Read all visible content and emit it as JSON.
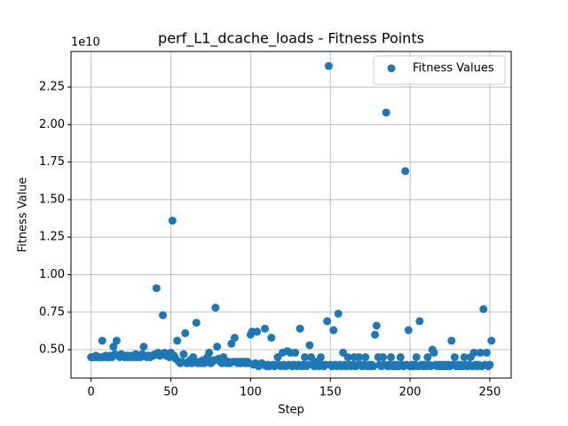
{
  "chart_data": {
    "type": "scatter",
    "title": "perf_L1_dcache_loads - Fitness Points",
    "xlabel": "Step",
    "ylabel": "Fitness Value",
    "y_offset_label": "1e10",
    "grid": true,
    "legend_position": "upper right",
    "xlim": [
      -12.6,
      263.4
    ],
    "ylim": [
      0.311,
      2.487
    ],
    "xticks": [
      0,
      50,
      100,
      150,
      200,
      250
    ],
    "yticks": [
      {
        "value": 0.5,
        "label": "0.50"
      },
      {
        "value": 0.75,
        "label": "0.75"
      },
      {
        "value": 1.0,
        "label": "1.00"
      },
      {
        "value": 1.25,
        "label": "1.25"
      },
      {
        "value": 1.5,
        "label": "1.50"
      },
      {
        "value": 1.75,
        "label": "1.75"
      },
      {
        "value": 2.0,
        "label": "2.00"
      },
      {
        "value": 2.25,
        "label": "2.25"
      }
    ],
    "series": [
      {
        "name": "Fitness Values",
        "color": "#1f77b4",
        "x": [
          0,
          1,
          2,
          3,
          4,
          5,
          6,
          7,
          8,
          9,
          10,
          11,
          12,
          13,
          14,
          15,
          16,
          17,
          18,
          19,
          20,
          21,
          22,
          23,
          24,
          25,
          26,
          27,
          28,
          29,
          30,
          31,
          32,
          33,
          34,
          35,
          36,
          37,
          38,
          39,
          40,
          41,
          42,
          43,
          44,
          45,
          46,
          47,
          48,
          49,
          50,
          51,
          52,
          53,
          54,
          55,
          56,
          57,
          58,
          59,
          60,
          61,
          62,
          63,
          64,
          65,
          66,
          67,
          68,
          69,
          70,
          71,
          72,
          73,
          74,
          75,
          76,
          77,
          78,
          79,
          80,
          81,
          82,
          83,
          84,
          85,
          86,
          87,
          88,
          89,
          90,
          91,
          92,
          93,
          94,
          95,
          96,
          97,
          98,
          99,
          100,
          101,
          102,
          103,
          104,
          105,
          106,
          107,
          108,
          109,
          110,
          111,
          112,
          113,
          114,
          115,
          116,
          117,
          118,
          119,
          120,
          121,
          122,
          123,
          124,
          125,
          126,
          127,
          128,
          129,
          130,
          131,
          132,
          133,
          134,
          135,
          136,
          137,
          138,
          139,
          140,
          141,
          142,
          143,
          144,
          145,
          146,
          147,
          148,
          149,
          150,
          151,
          152,
          153,
          154,
          155,
          156,
          157,
          158,
          159,
          160,
          161,
          162,
          163,
          164,
          165,
          166,
          167,
          168,
          169,
          170,
          171,
          172,
          173,
          174,
          175,
          176,
          177,
          178,
          179,
          180,
          181,
          182,
          183,
          184,
          185,
          186,
          187,
          188,
          189,
          190,
          191,
          192,
          193,
          194,
          195,
          196,
          197,
          198,
          199,
          200,
          201,
          202,
          203,
          204,
          205,
          206,
          207,
          208,
          209,
          210,
          211,
          212,
          213,
          214,
          215,
          216,
          217,
          218,
          219,
          220,
          221,
          222,
          223,
          224,
          225,
          226,
          227,
          228,
          229,
          230,
          231,
          232,
          233,
          234,
          235,
          236,
          237,
          238,
          239,
          240,
          241,
          242,
          243,
          244,
          245,
          246,
          247,
          248,
          249,
          250,
          251
        ],
        "values": [
          0.45,
          0.45,
          0.45,
          0.46,
          0.45,
          0.45,
          0.45,
          0.56,
          0.45,
          0.46,
          0.45,
          0.45,
          0.46,
          0.45,
          0.52,
          0.47,
          0.56,
          0.46,
          0.45,
          0.47,
          0.46,
          0.45,
          0.46,
          0.45,
          0.46,
          0.45,
          0.46,
          0.45,
          0.47,
          0.45,
          0.46,
          0.45,
          0.47,
          0.52,
          0.46,
          0.45,
          0.46,
          0.45,
          0.46,
          0.46,
          0.47,
          0.91,
          0.48,
          0.46,
          0.47,
          0.73,
          0.48,
          0.46,
          0.47,
          0.45,
          0.48,
          1.36,
          0.46,
          0.44,
          0.56,
          0.42,
          0.41,
          0.42,
          0.47,
          0.61,
          0.41,
          0.42,
          0.43,
          0.41,
          0.45,
          0.42,
          0.68,
          0.41,
          0.42,
          0.41,
          0.43,
          0.41,
          0.42,
          0.45,
          0.48,
          0.41,
          0.42,
          0.43,
          0.78,
          0.52,
          0.44,
          0.42,
          0.41,
          0.45,
          0.42,
          0.41,
          0.42,
          0.41,
          0.54,
          0.42,
          0.58,
          0.42,
          0.41,
          0.42,
          0.41,
          0.42,
          0.42,
          0.41,
          0.42,
          0.41,
          0.6,
          0.62,
          0.4,
          0.41,
          0.62,
          0.39,
          0.4,
          0.41,
          0.4,
          0.64,
          0.39,
          0.4,
          0.39,
          0.58,
          0.4,
          0.39,
          0.4,
          0.45,
          0.4,
          0.39,
          0.48,
          0.4,
          0.39,
          0.49,
          0.4,
          0.48,
          0.39,
          0.4,
          0.48,
          0.39,
          0.4,
          0.64,
          0.39,
          0.4,
          0.45,
          0.39,
          0.4,
          0.53,
          0.45,
          0.4,
          0.39,
          0.42,
          0.4,
          0.39,
          0.45,
          0.4,
          0.39,
          0.4,
          0.69,
          2.39,
          0.4,
          0.39,
          0.63,
          0.4,
          0.39,
          0.74,
          0.4,
          0.39,
          0.48,
          0.4,
          0.39,
          0.45,
          0.4,
          0.39,
          0.4,
          0.45,
          0.39,
          0.4,
          0.45,
          0.4,
          0.39,
          0.4,
          0.45,
          0.39,
          0.4,
          0.39,
          0.4,
          0.39,
          0.6,
          0.66,
          0.45,
          0.4,
          0.39,
          0.45,
          0.4,
          2.08,
          0.39,
          0.4,
          0.45,
          0.39,
          0.4,
          0.39,
          0.4,
          0.39,
          0.45,
          0.4,
          0.39,
          1.69,
          0.4,
          0.63,
          0.39,
          0.4,
          0.39,
          0.4,
          0.45,
          0.39,
          0.69,
          0.4,
          0.39,
          0.4,
          0.39,
          0.45,
          0.4,
          0.39,
          0.5,
          0.48,
          0.4,
          0.39,
          0.4,
          0.39,
          0.4,
          0.39,
          0.4,
          0.39,
          0.4,
          0.39,
          0.56,
          0.4,
          0.45,
          0.39,
          0.4,
          0.39,
          0.4,
          0.39,
          0.45,
          0.4,
          0.39,
          0.4,
          0.45,
          0.39,
          0.48,
          0.4,
          0.39,
          0.4,
          0.48,
          0.39,
          0.77,
          0.4,
          0.48,
          0.39,
          0.4,
          0.56
        ]
      }
    ]
  }
}
